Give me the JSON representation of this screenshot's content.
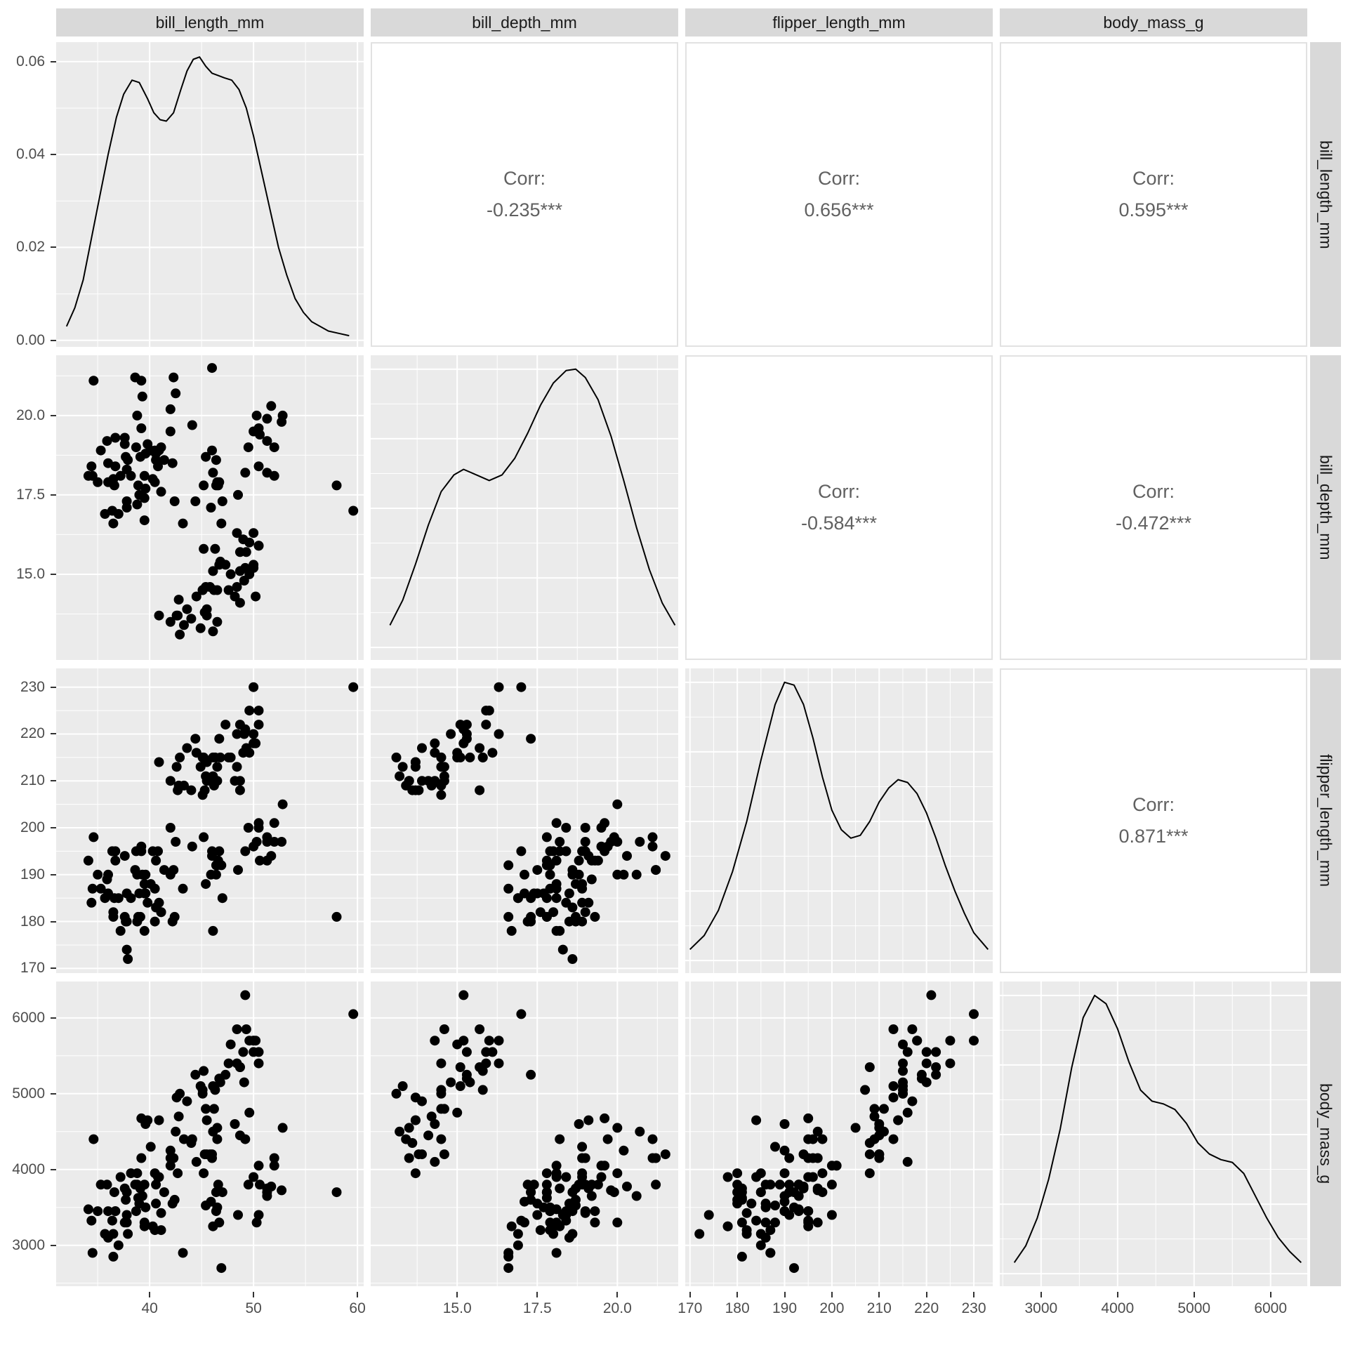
{
  "chart_data": {
    "type": "scatterplot-matrix",
    "style": {
      "panel_bg": "#ebebeb",
      "grid_color": "#ffffff",
      "point_color": "#000000",
      "line_color": "#000000",
      "strip_bg": "#d9d9d9",
      "strip_text_color": "#1a1a1a",
      "corr_text_color": "#616161",
      "corr_border_color": "#e2e2e2",
      "tick_text_color": "#4d4d4d"
    },
    "layout": {
      "diagonal": "density",
      "upper_triangle": "correlation",
      "lower_triangle": "scatter",
      "grid": "on"
    },
    "variables": [
      {
        "key": "bill_length_mm",
        "label": "bill_length_mm",
        "range": [
          31.0,
          60.6
        ],
        "major": [
          40,
          50,
          60
        ],
        "minor": [
          35,
          45,
          55
        ],
        "tick_labels": [
          "40",
          "50",
          "60"
        ]
      },
      {
        "key": "bill_depth_mm",
        "label": "bill_depth_mm",
        "range": [
          12.3,
          21.9
        ],
        "major": [
          15,
          17.5,
          20
        ],
        "minor": [
          13.75,
          16.25,
          18.75,
          21.25
        ],
        "tick_labels": [
          "15.0",
          "17.5",
          "20.0"
        ]
      },
      {
        "key": "flipper_length_mm",
        "label": "flipper_length_mm",
        "range": [
          169,
          234
        ],
        "major": [
          170,
          180,
          190,
          200,
          210,
          220,
          230
        ],
        "minor": [
          175,
          185,
          195,
          205,
          215,
          225
        ],
        "tick_labels": [
          "170",
          "180",
          "190",
          "200",
          "210",
          "220",
          "230"
        ]
      },
      {
        "key": "body_mass_g",
        "label": "body_mass_g",
        "range": [
          2460,
          6480
        ],
        "major": [
          3000,
          4000,
          5000,
          6000
        ],
        "minor": [
          2500,
          3500,
          4500,
          5500
        ],
        "tick_labels": [
          "3000",
          "4000",
          "5000",
          "6000"
        ]
      }
    ],
    "density_axis": {
      "range": [
        -0.0014,
        0.0642
      ],
      "major": [
        0,
        0.02,
        0.04,
        0.06
      ],
      "minor": [
        0.01,
        0.03,
        0.05
      ],
      "tick_labels": [
        "0.00",
        "0.02",
        "0.04",
        "0.06"
      ]
    },
    "normalized_axis": {
      "range": [
        -0.045,
        1.05
      ],
      "major": [
        0,
        0.25,
        0.5,
        0.75,
        1.0
      ],
      "minor": [
        0.125,
        0.375,
        0.625,
        0.875
      ]
    },
    "corr_label": "Corr:",
    "correlations": [
      {
        "pair": "bill_length_mm x bill_depth_mm",
        "value": "-0.235***"
      },
      {
        "pair": "bill_length_mm x flipper_length_mm",
        "value": "0.656***"
      },
      {
        "pair": "bill_length_mm x body_mass_g",
        "value": "0.595***"
      },
      {
        "pair": "bill_depth_mm x flipper_length_mm",
        "value": "-0.584***"
      },
      {
        "pair": "bill_depth_mm x body_mass_g",
        "value": "-0.472***"
      },
      {
        "pair": "flipper_length_mm x body_mass_g",
        "value": "0.871***"
      }
    ],
    "densities": {
      "bill_length_mm": {
        "unit": "absolute",
        "x": [
          32.0,
          32.8,
          33.6,
          34.4,
          35.2,
          36.0,
          36.8,
          37.5,
          38.3,
          39.0,
          39.8,
          40.4,
          41.0,
          41.6,
          42.3,
          43.0,
          43.6,
          44.2,
          44.8,
          45.4,
          46.0,
          46.6,
          47.2,
          47.9,
          48.6,
          49.3,
          50.0,
          50.8,
          51.6,
          52.4,
          53.2,
          54.0,
          54.8,
          55.6,
          56.4,
          57.2,
          58.2,
          59.2
        ],
        "y": [
          0.003,
          0.007,
          0.013,
          0.022,
          0.031,
          0.04,
          0.048,
          0.053,
          0.056,
          0.0555,
          0.052,
          0.049,
          0.0475,
          0.0472,
          0.049,
          0.054,
          0.058,
          0.0605,
          0.061,
          0.059,
          0.0575,
          0.057,
          0.0565,
          0.056,
          0.054,
          0.05,
          0.044,
          0.036,
          0.028,
          0.02,
          0.014,
          0.009,
          0.006,
          0.004,
          0.003,
          0.002,
          0.0015,
          0.001
        ]
      },
      "bill_depth_mm": {
        "unit": "normalized",
        "x": [
          12.9,
          13.3,
          13.7,
          14.1,
          14.5,
          14.9,
          15.2,
          15.6,
          16.0,
          16.4,
          16.8,
          17.2,
          17.6,
          18.0,
          18.4,
          18.7,
          19.0,
          19.4,
          19.8,
          20.2,
          20.6,
          21.0,
          21.4,
          21.8
        ],
        "y": [
          0.08,
          0.17,
          0.3,
          0.44,
          0.56,
          0.62,
          0.64,
          0.62,
          0.6,
          0.62,
          0.68,
          0.77,
          0.87,
          0.95,
          0.995,
          1.0,
          0.97,
          0.89,
          0.76,
          0.6,
          0.43,
          0.28,
          0.16,
          0.08
        ]
      },
      "flipper_length_mm": {
        "unit": "normalized",
        "x": [
          170,
          173,
          176,
          179,
          182,
          185,
          188,
          190,
          192,
          194,
          196,
          198,
          200,
          202,
          204,
          206,
          208,
          210,
          212,
          214,
          216,
          218,
          220,
          222,
          224,
          226,
          228,
          230,
          233
        ],
        "y": [
          0.04,
          0.09,
          0.18,
          0.32,
          0.5,
          0.72,
          0.92,
          1.0,
          0.99,
          0.92,
          0.8,
          0.66,
          0.54,
          0.47,
          0.44,
          0.45,
          0.5,
          0.57,
          0.62,
          0.65,
          0.64,
          0.6,
          0.53,
          0.44,
          0.34,
          0.25,
          0.17,
          0.1,
          0.04
        ]
      },
      "body_mass_g": {
        "unit": "normalized",
        "x": [
          2650,
          2800,
          2950,
          3100,
          3250,
          3400,
          3550,
          3700,
          3850,
          4000,
          4150,
          4300,
          4450,
          4600,
          4750,
          4900,
          5050,
          5200,
          5350,
          5500,
          5650,
          5800,
          5950,
          6100,
          6250,
          6400
        ],
        "y": [
          0.04,
          0.1,
          0.2,
          0.34,
          0.52,
          0.74,
          0.92,
          1.0,
          0.97,
          0.88,
          0.76,
          0.66,
          0.62,
          0.61,
          0.59,
          0.54,
          0.47,
          0.43,
          0.41,
          0.4,
          0.36,
          0.28,
          0.2,
          0.13,
          0.08,
          0.04
        ]
      }
    },
    "points_columns": [
      "bill_length_mm",
      "bill_depth_mm",
      "flipper_length_mm",
      "body_mass_g"
    ],
    "points": [
      [
        39.1,
        18.7,
        181,
        3750
      ],
      [
        39.5,
        17.4,
        186,
        3800
      ],
      [
        40.3,
        18.0,
        195,
        3250
      ],
      [
        36.7,
        19.3,
        193,
        3450
      ],
      [
        39.3,
        20.6,
        190,
        3650
      ],
      [
        38.9,
        17.8,
        181,
        3625
      ],
      [
        39.2,
        19.6,
        195,
        4675
      ],
      [
        34.1,
        18.1,
        193,
        3475
      ],
      [
        42.0,
        20.2,
        190,
        4250
      ],
      [
        37.8,
        17.1,
        186,
        3300
      ],
      [
        37.8,
        17.3,
        180,
        3700
      ],
      [
        41.1,
        17.6,
        182,
        3200
      ],
      [
        38.6,
        21.2,
        191,
        3800
      ],
      [
        34.6,
        21.1,
        198,
        4400
      ],
      [
        36.6,
        17.8,
        185,
        3700
      ],
      [
        36.7,
        18.4,
        195,
        3450
      ],
      [
        38.7,
        19.0,
        195,
        3450
      ],
      [
        42.5,
        20.7,
        197,
        4500
      ],
      [
        34.4,
        18.4,
        184,
        3325
      ],
      [
        46.0,
        21.5,
        194,
        4200
      ],
      [
        37.8,
        18.3,
        174,
        3400
      ],
      [
        37.7,
        18.7,
        180,
        3600
      ],
      [
        35.9,
        19.2,
        189,
        3800
      ],
      [
        38.2,
        18.1,
        185,
        3950
      ],
      [
        38.8,
        17.2,
        180,
        3800
      ],
      [
        35.3,
        18.9,
        187,
        3800
      ],
      [
        40.6,
        18.6,
        183,
        3550
      ],
      [
        40.5,
        17.9,
        187,
        3200
      ],
      [
        37.9,
        18.6,
        172,
        3150
      ],
      [
        40.5,
        18.9,
        180,
        3950
      ],
      [
        39.5,
        16.7,
        178,
        3250
      ],
      [
        37.2,
        18.1,
        178,
        3900
      ],
      [
        39.5,
        18.1,
        188,
        3300
      ],
      [
        40.9,
        18.9,
        184,
        3900
      ],
      [
        36.4,
        17.0,
        195,
        3325
      ],
      [
        39.2,
        21.1,
        196,
        4150
      ],
      [
        38.8,
        20.0,
        190,
        3950
      ],
      [
        42.2,
        18.5,
        180,
        3550
      ],
      [
        37.6,
        19.3,
        181,
        3300
      ],
      [
        39.8,
        19.1,
        184,
        4650
      ],
      [
        36.5,
        18.0,
        182,
        3150
      ],
      [
        40.8,
        18.4,
        195,
        3900
      ],
      [
        36.0,
        18.5,
        186,
        3100
      ],
      [
        44.1,
        19.7,
        196,
        4400
      ],
      [
        37.0,
        16.9,
        185,
        3000
      ],
      [
        39.6,
        18.8,
        190,
        4600
      ],
      [
        41.1,
        19.0,
        182,
        3425
      ],
      [
        36.0,
        17.9,
        190,
        3450
      ],
      [
        42.3,
        21.2,
        191,
        4150
      ],
      [
        39.6,
        17.7,
        186,
        3500
      ],
      [
        40.1,
        18.9,
        188,
        4300
      ],
      [
        35.0,
        17.9,
        190,
        3450
      ],
      [
        42.0,
        19.5,
        200,
        4050
      ],
      [
        34.5,
        18.1,
        187,
        2900
      ],
      [
        41.4,
        18.6,
        191,
        3700
      ],
      [
        39.0,
        17.5,
        186,
        3550
      ],
      [
        40.6,
        18.8,
        193,
        3800
      ],
      [
        36.5,
        16.6,
        181,
        2850
      ],
      [
        37.6,
        19.1,
        194,
        3750
      ],
      [
        35.7,
        16.9,
        185,
        3150
      ],
      [
        46.5,
        17.9,
        192,
        3500
      ],
      [
        50.0,
        19.5,
        196,
        3900
      ],
      [
        51.3,
        19.2,
        193,
        3650
      ],
      [
        45.4,
        18.7,
        188,
        3525
      ],
      [
        52.7,
        19.8,
        197,
        3725
      ],
      [
        45.2,
        17.8,
        198,
        3950
      ],
      [
        46.1,
        18.2,
        178,
        3250
      ],
      [
        51.3,
        18.2,
        197,
        3750
      ],
      [
        46.0,
        18.9,
        195,
        4150
      ],
      [
        51.3,
        19.9,
        198,
        3700
      ],
      [
        46.6,
        17.8,
        193,
        3800
      ],
      [
        51.7,
        20.3,
        194,
        3775
      ],
      [
        47.0,
        17.3,
        185,
        3700
      ],
      [
        52.0,
        18.1,
        201,
        4050
      ],
      [
        45.9,
        17.1,
        190,
        3575
      ],
      [
        50.5,
        19.6,
        201,
        4050
      ],
      [
        50.3,
        20.0,
        197,
        3300
      ],
      [
        58.0,
        17.8,
        181,
        3700
      ],
      [
        46.4,
        18.6,
        190,
        3450
      ],
      [
        49.2,
        18.2,
        195,
        4400
      ],
      [
        42.4,
        17.3,
        181,
        3600
      ],
      [
        48.5,
        17.5,
        191,
        3400
      ],
      [
        43.2,
        16.6,
        187,
        2900
      ],
      [
        50.6,
        19.4,
        193,
        3800
      ],
      [
        46.7,
        17.9,
        195,
        3300
      ],
      [
        52.0,
        19.0,
        197,
        4150
      ],
      [
        50.5,
        18.4,
        200,
        3400
      ],
      [
        49.5,
        19.0,
        200,
        3800
      ],
      [
        46.4,
        17.8,
        192,
        3700
      ],
      [
        52.8,
        20.0,
        205,
        4550
      ],
      [
        46.9,
        16.6,
        192,
        2700
      ],
      [
        46.1,
        13.2,
        211,
        4500
      ],
      [
        50.0,
        16.3,
        230,
        5700
      ],
      [
        48.7,
        14.1,
        210,
        4450
      ],
      [
        50.0,
        15.2,
        218,
        5700
      ],
      [
        47.6,
        14.5,
        215,
        5400
      ],
      [
        46.5,
        13.5,
        210,
        4550
      ],
      [
        45.4,
        14.6,
        211,
        4800
      ],
      [
        46.7,
        15.3,
        219,
        5200
      ],
      [
        43.3,
        13.4,
        209,
        4400
      ],
      [
        46.8,
        15.4,
        215,
        5150
      ],
      [
        40.9,
        13.7,
        214,
        4650
      ],
      [
        49.0,
        16.1,
        216,
        5550
      ],
      [
        45.5,
        13.7,
        214,
        4650
      ],
      [
        48.4,
        14.6,
        213,
        5850
      ],
      [
        45.8,
        14.6,
        210,
        4200
      ],
      [
        49.3,
        15.7,
        217,
        5850
      ],
      [
        42.0,
        13.5,
        210,
        4150
      ],
      [
        49.2,
        15.2,
        221,
        6300
      ],
      [
        46.2,
        14.5,
        209,
        4800
      ],
      [
        48.7,
        15.1,
        222,
        5350
      ],
      [
        50.2,
        14.3,
        218,
        5700
      ],
      [
        45.1,
        14.5,
        215,
        5000
      ],
      [
        46.5,
        14.5,
        213,
        4400
      ],
      [
        46.3,
        15.8,
        215,
        5050
      ],
      [
        42.9,
        13.1,
        215,
        5000
      ],
      [
        46.1,
        15.1,
        215,
        5100
      ],
      [
        44.5,
        14.3,
        216,
        4100
      ],
      [
        47.8,
        15.0,
        215,
        5650
      ],
      [
        48.2,
        14.3,
        210,
        4600
      ],
      [
        50.0,
        15.3,
        220,
        5550
      ],
      [
        47.3,
        15.3,
        222,
        5250
      ],
      [
        42.8,
        14.2,
        209,
        4700
      ],
      [
        45.1,
        14.5,
        207,
        5050
      ],
      [
        59.6,
        17.0,
        230,
        6050
      ],
      [
        49.1,
        14.8,
        220,
        5150
      ],
      [
        48.4,
        16.3,
        220,
        5400
      ],
      [
        42.6,
        13.7,
        213,
        4950
      ],
      [
        44.4,
        17.3,
        219,
        5250
      ],
      [
        44.0,
        13.6,
        208,
        4350
      ],
      [
        48.7,
        15.7,
        208,
        5350
      ],
      [
        42.7,
        13.7,
        208,
        3950
      ],
      [
        49.6,
        16.0,
        225,
        5700
      ],
      [
        45.3,
        13.8,
        208,
        4200
      ],
      [
        49.6,
        15.0,
        216,
        4750
      ],
      [
        50.5,
        15.9,
        222,
        5550
      ],
      [
        43.6,
        13.9,
        217,
        4900
      ],
      [
        45.5,
        13.9,
        210,
        4200
      ],
      [
        50.5,
        15.9,
        225,
        5400
      ],
      [
        44.9,
        13.3,
        213,
        5100
      ],
      [
        45.2,
        15.8,
        215,
        5300
      ]
    ]
  }
}
